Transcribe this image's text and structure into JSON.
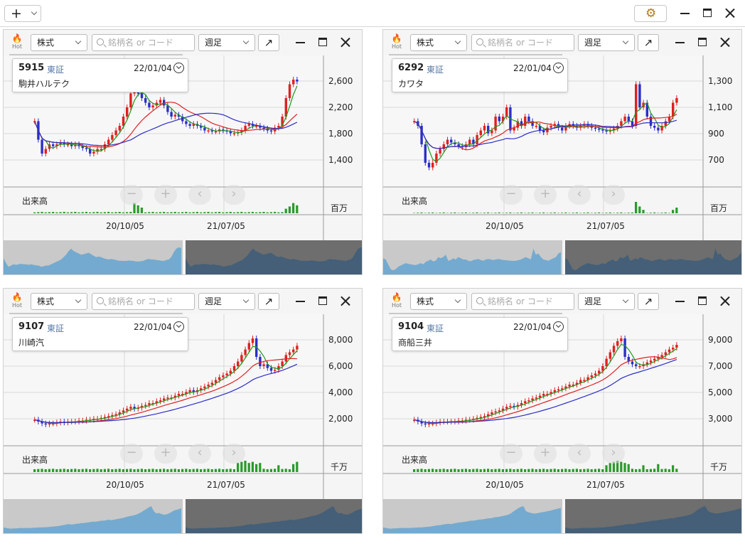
{
  "toolbar": {
    "add_label": "+",
    "settings_icon": "gear-icon"
  },
  "panels": [
    {
      "hot": "Hot",
      "type_select": "株式",
      "search_placeholder": "銘柄名 or コード",
      "period_select": "週足",
      "code": "5915",
      "exchange": "東証",
      "date": "22/01/04",
      "name": "駒井ハルテク",
      "volume_label": "出来高",
      "volume_unit": "百万",
      "dates": [
        "20/10/05",
        "21/07/05"
      ],
      "price_axis": [
        "2,600",
        "2,200",
        "1,800",
        "1,400"
      ]
    },
    {
      "hot": "Hot",
      "type_select": "株式",
      "search_placeholder": "銘柄名 or コード",
      "period_select": "週足",
      "code": "6292",
      "exchange": "東証",
      "date": "22/01/04",
      "name": "カワタ",
      "volume_label": "出来高",
      "volume_unit": "百万",
      "dates": [
        "20/10/05",
        "21/07/05"
      ],
      "price_axis": [
        "1,300",
        "1,100",
        "900",
        "700"
      ]
    },
    {
      "hot": "Hot",
      "type_select": "株式",
      "search_placeholder": "銘柄名 or コード",
      "period_select": "週足",
      "code": "9107",
      "exchange": "東証",
      "date": "22/01/04",
      "name": "川崎汽",
      "volume_label": "出来高",
      "volume_unit": "千万",
      "dates": [
        "20/10/05",
        "21/07/05"
      ],
      "price_axis": [
        "8,000",
        "6,000",
        "4,000",
        "2,000"
      ]
    },
    {
      "hot": "Hot",
      "type_select": "株式",
      "search_placeholder": "銘柄名 or コード",
      "period_select": "週足",
      "code": "9104",
      "exchange": "東証",
      "date": "22/01/04",
      "name": "商船三井",
      "volume_label": "出来高",
      "volume_unit": "千万",
      "dates": [
        "20/10/05",
        "21/07/05"
      ],
      "price_axis": [
        "9,000",
        "7,000",
        "5,000",
        "3,000"
      ]
    }
  ],
  "colors": {
    "up": "#e02020",
    "down": "#2b2fc8",
    "ma_short": "#1a9a1a",
    "ma_mid": "#e02020",
    "ma_long": "#2b2fc8",
    "volume": "#2a9a2a"
  }
}
